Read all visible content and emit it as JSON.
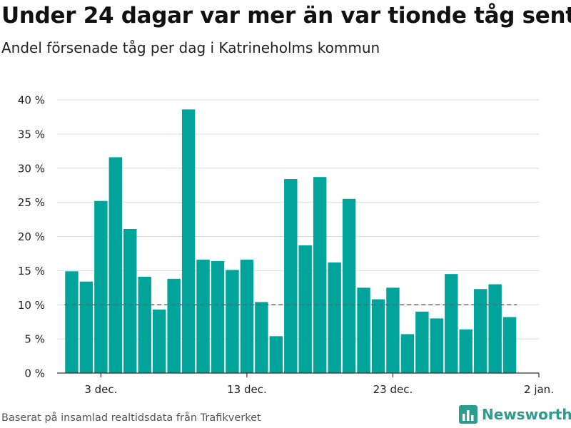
{
  "title": "Under 24 dagar var mer än var tionde tåg sent",
  "subtitle": "Andel försenade tåg per dag i Katrineholms kommun",
  "source": "Baserat på insamlad realtidsdata från Trafikverket",
  "brand": {
    "name": "Newsworthy",
    "icon": "bar-chart-logo-icon",
    "color": "#2a9d8f"
  },
  "colors": {
    "bar": "#00a49a",
    "reference_line": "#666666",
    "grid": "#dddddd"
  },
  "chart_data": {
    "type": "bar",
    "categories": [
      "2023-12-01",
      "2023-12-02",
      "2023-12-03",
      "2023-12-04",
      "2023-12-05",
      "2023-12-06",
      "2023-12-07",
      "2023-12-08",
      "2023-12-09",
      "2023-12-10",
      "2023-12-11",
      "2023-12-12",
      "2023-12-13",
      "2023-12-14",
      "2023-12-15",
      "2023-12-16",
      "2023-12-17",
      "2023-12-18",
      "2023-12-19",
      "2023-12-20",
      "2023-12-21",
      "2023-12-22",
      "2023-12-23",
      "2023-12-24",
      "2023-12-25",
      "2023-12-26",
      "2023-12-27",
      "2023-12-28",
      "2023-12-29",
      "2023-12-30",
      "2023-12-31"
    ],
    "values": [
      14.9,
      13.4,
      25.2,
      31.6,
      21.1,
      14.1,
      9.3,
      13.8,
      38.6,
      16.6,
      16.4,
      15.1,
      16.6,
      10.4,
      5.4,
      28.4,
      18.7,
      28.7,
      16.2,
      25.5,
      12.5,
      10.8,
      12.5,
      5.7,
      9.0,
      8.0,
      14.5,
      6.4,
      12.3,
      13.0,
      8.2
    ],
    "xticks": [
      {
        "date": "2023-12-03",
        "label": "3 dec."
      },
      {
        "date": "2023-12-13",
        "label": "13 dec."
      },
      {
        "date": "2023-12-23",
        "label": "23 dec."
      },
      {
        "date": "2024-01-02",
        "label": "2 jan."
      }
    ],
    "yticks": [
      {
        "value": 0,
        "label": "0 %"
      },
      {
        "value": 5,
        "label": "5 %"
      },
      {
        "value": 10,
        "label": "10 %"
      },
      {
        "value": 15,
        "label": "15 %"
      },
      {
        "value": 20,
        "label": "20 %"
      },
      {
        "value": 25,
        "label": "25 %"
      },
      {
        "value": 30,
        "label": "30 %"
      },
      {
        "value": 35,
        "label": "35 %"
      },
      {
        "value": 40,
        "label": "40 %"
      }
    ],
    "ylim": [
      0,
      40
    ],
    "xlim": [
      "2023-11-30",
      "2024-01-02"
    ],
    "reference_line": {
      "value": 10,
      "style": "dashed"
    },
    "grid": true,
    "legend": false
  }
}
